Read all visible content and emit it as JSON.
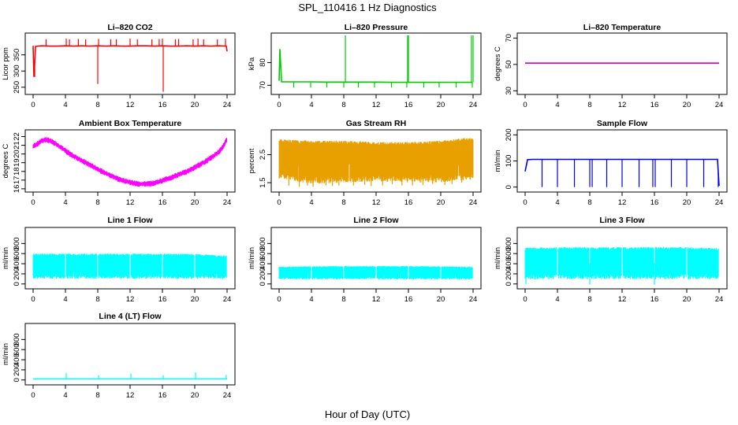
{
  "figure": {
    "title": "SPL_110416  1 Hz Diagnostics",
    "xlabel": "Hour of Day (UTC)"
  },
  "chart_data": [
    {
      "type": "line",
      "title": "Li–820 CO2",
      "ylabel": "Licor ppm",
      "color": "#ff0000",
      "xlim": [
        0,
        24
      ],
      "ylim": [
        235,
        410
      ],
      "xticks": [
        0,
        4,
        8,
        12,
        16,
        20,
        24
      ],
      "yticks": [
        250,
        300,
        350
      ],
      "series": [
        {
          "x": [
            0,
            0.1,
            0.3,
            1,
            2,
            3,
            4,
            5,
            6,
            7,
            8,
            9,
            10,
            11,
            12,
            13,
            14,
            15,
            16,
            17,
            18,
            19,
            20,
            21,
            22,
            23,
            23.9,
            24
          ],
          "y": [
            378,
            282,
            376,
            378,
            377,
            377,
            378,
            377,
            378,
            377,
            378,
            377,
            378,
            377,
            377,
            378,
            378,
            377,
            378,
            377,
            377,
            378,
            377,
            378,
            377,
            378,
            377,
            361
          ]
        }
      ],
      "spikes": [
        {
          "x": [
            0.2,
            8.0,
            16.1
          ],
          "y": [
            282,
            260,
            236
          ]
        },
        {
          "x": [
            1.6,
            4.1,
            4.5,
            5.6,
            6.5,
            8.1,
            9.6,
            10.3,
            12.0,
            12.9,
            14.7,
            15.6,
            16.0,
            17.6,
            18.0,
            19.8,
            20.4,
            21.1,
            22.8,
            23.8
          ],
          "y": [
            398,
            400,
            398,
            399,
            398,
            399,
            398,
            398,
            400,
            398,
            398,
            399,
            400,
            398,
            399,
            398,
            400,
            398,
            398,
            400
          ]
        }
      ]
    },
    {
      "type": "line",
      "title": "Li–820 Pressure",
      "ylabel": "kPa",
      "color": "#00cc00",
      "xlim": [
        0,
        24
      ],
      "ylim": [
        67,
        92
      ],
      "xticks": [
        0,
        4,
        8,
        12,
        16,
        20,
        24
      ],
      "yticks": [
        70,
        80
      ],
      "series": [
        {
          "x": [
            0,
            0.1,
            0.3,
            2,
            4,
            6,
            8,
            10,
            12,
            14,
            16,
            18,
            20,
            22,
            23.9
          ],
          "y": [
            72,
            86,
            71.5,
            71.5,
            71.5,
            71.4,
            71.4,
            71.4,
            71.4,
            71.3,
            71.3,
            71.3,
            71.3,
            71.3,
            71.3
          ]
        }
      ],
      "spikes": [
        {
          "x": [
            8.2,
            15.9,
            16.0,
            23.8,
            24.0
          ],
          "y": [
            92,
            92,
            92,
            92,
            92
          ]
        },
        {
          "x": [
            1.8,
            3.9,
            5.9,
            8.0,
            9.8,
            11.8,
            13.9,
            15.8,
            17.9,
            19.8,
            21.9,
            23.9
          ],
          "y": [
            69,
            69,
            69,
            69,
            69,
            69,
            69,
            69,
            69,
            69,
            69,
            69
          ]
        }
      ]
    },
    {
      "type": "line",
      "title": "Li–820 Temperature",
      "ylabel": "degrees C",
      "color": "#cc00cc",
      "xlim": [
        0,
        24
      ],
      "ylim": [
        29,
        72
      ],
      "xticks": [
        0,
        4,
        8,
        12,
        16,
        20,
        24
      ],
      "yticks": [
        30,
        50,
        70
      ],
      "series": [
        {
          "x": [
            0,
            24
          ],
          "y": [
            51,
            51
          ]
        }
      ]
    },
    {
      "type": "line",
      "title": "Ambient Box Temperature",
      "ylabel": "degrees C",
      "color": "#ff00ff",
      "xlim": [
        0,
        24
      ],
      "ylim": [
        15.9,
        22.5
      ],
      "xticks": [
        0,
        4,
        8,
        12,
        16,
        20,
        24
      ],
      "yticks": [
        16,
        17,
        18,
        19,
        20,
        21,
        22
      ],
      "series": [
        {
          "x": [
            0,
            0.5,
            1,
            1.5,
            2,
            3,
            4,
            5,
            6,
            7,
            8,
            9,
            10,
            11,
            12,
            13,
            14,
            15,
            16,
            17,
            18,
            19,
            20,
            21,
            22,
            23,
            23.5,
            24
          ],
          "y": [
            20.9,
            21.2,
            21.5,
            21.7,
            21.6,
            21.1,
            20.4,
            19.8,
            19.3,
            18.8,
            18.3,
            17.8,
            17.4,
            17.0,
            16.8,
            16.6,
            16.6,
            16.7,
            17.0,
            17.3,
            17.7,
            18.0,
            18.5,
            19.0,
            19.6,
            20.3,
            20.9,
            21.8
          ]
        }
      ],
      "band": 0.35
    },
    {
      "type": "line",
      "title": "Gas Stream RH",
      "ylabel": "percent",
      "color": "#e8a000",
      "xlim": [
        0,
        24
      ],
      "ylim": [
        1.25,
        3.3
      ],
      "xticks": [
        0,
        4,
        8,
        12,
        16,
        20,
        24
      ],
      "yticks": [
        1.5,
        2.5
      ],
      "band_hi": [
        {
          "x": [
            0,
            4,
            8,
            12,
            16,
            20,
            23,
            24
          ],
          "y": [
            3.05,
            3.0,
            3.0,
            2.95,
            2.95,
            3.0,
            3.1,
            3.1
          ]
        }
      ],
      "band_lo": [
        {
          "x": [
            0,
            4,
            8,
            12,
            16,
            20,
            24
          ],
          "y": [
            1.65,
            1.45,
            1.5,
            1.55,
            1.5,
            1.5,
            1.6
          ]
        }
      ],
      "spikes": [
        {
          "x": [
            1.2,
            2.5,
            3.5,
            4.2,
            5.8,
            6.6,
            7.4,
            9.2,
            10.6,
            11.4,
            12.8,
            14.0,
            15.2,
            16.5,
            17.8,
            19.0,
            20.5,
            21.4,
            22.6
          ],
          "y": [
            1.4,
            1.35,
            1.4,
            1.35,
            1.4,
            1.38,
            1.4,
            1.4,
            1.42,
            1.38,
            1.4,
            1.45,
            1.4,
            1.4,
            1.42,
            1.45,
            1.42,
            1.45,
            1.5
          ]
        }
      ]
    },
    {
      "type": "line",
      "title": "Sample Flow",
      "ylabel": "ml/min",
      "color": "#0000ee",
      "xlim": [
        0,
        24
      ],
      "ylim": [
        -10,
        210
      ],
      "xticks": [
        0,
        4,
        8,
        12,
        16,
        20,
        24
      ],
      "yticks": [
        0,
        100,
        200
      ],
      "series": [
        {
          "x": [
            0,
            0.3,
            1,
            4,
            7.8,
            8.5,
            12,
            15.8,
            16.5,
            20,
            23.8,
            24
          ],
          "y": [
            60,
            105,
            106,
            106,
            106,
            106,
            106,
            106,
            106,
            106,
            106,
            5
          ]
        }
      ],
      "spikes": [
        {
          "x": [
            2.1,
            4.0,
            6.1,
            8.0,
            8.3,
            10.1,
            12.0,
            14.1,
            15.8,
            16.1,
            18.1,
            20.0,
            22.1,
            23.9
          ],
          "y": [
            0,
            0,
            0,
            0,
            0,
            0,
            0,
            0,
            0,
            0,
            0,
            0,
            0,
            0
          ]
        }
      ]
    },
    {
      "type": "line",
      "title": "Line 1 Flow",
      "ylabel": "ml/min",
      "color": "#00ffff",
      "xlim": [
        0,
        24
      ],
      "ylim": [
        -50,
        1070
      ],
      "xticks": [
        0,
        4,
        8,
        12,
        16,
        20,
        24
      ],
      "yticks": [
        0,
        200,
        400,
        600,
        800
      ],
      "band_hi": [
        {
          "x": [
            0,
            4,
            8,
            12,
            16,
            20,
            24
          ],
          "y": [
            600,
            600,
            600,
            600,
            600,
            595,
            560
          ]
        }
      ],
      "band_lo": [
        {
          "x": [
            0,
            24
          ],
          "y": [
            100,
            100
          ]
        }
      ],
      "gaps": [
        4,
        8,
        12,
        16,
        20,
        24
      ]
    },
    {
      "type": "line",
      "title": "Line 2 Flow",
      "ylabel": "ml/min",
      "color": "#00ffff",
      "xlim": [
        0,
        24
      ],
      "ylim": [
        -50,
        1070
      ],
      "xticks": [
        0,
        4,
        8,
        12,
        16,
        20,
        24
      ],
      "yticks": [
        0,
        200,
        400,
        600,
        800
      ],
      "band_hi": [
        {
          "x": [
            0,
            4,
            8,
            12,
            16,
            20,
            24
          ],
          "y": [
            340,
            350,
            355,
            355,
            355,
            350,
            340
          ]
        }
      ],
      "band_lo": [
        {
          "x": [
            0,
            24
          ],
          "y": [
            90,
            90
          ]
        }
      ],
      "gaps": [
        4,
        8,
        12,
        16,
        20,
        24
      ]
    },
    {
      "type": "line",
      "title": "Line 3 Flow",
      "ylabel": "ml/min",
      "color": "#00ffff",
      "xlim": [
        0,
        24
      ],
      "ylim": [
        -50,
        1070
      ],
      "xticks": [
        0,
        4,
        8,
        12,
        16,
        20,
        24
      ],
      "yticks": [
        0,
        200,
        400,
        600,
        800
      ],
      "band_hi": [
        {
          "x": [
            0,
            4,
            8,
            12,
            16,
            20,
            24
          ],
          "y": [
            720,
            730,
            730,
            730,
            730,
            730,
            710
          ]
        }
      ],
      "band_lo": [
        {
          "x": [
            0,
            24
          ],
          "y": [
            90,
            90
          ]
        }
      ],
      "gaps": [
        4,
        8,
        12,
        16,
        20,
        24
      ],
      "spikes": [
        {
          "x": [
            0.1,
            8.0,
            16.0
          ],
          "y": [
            0,
            -10,
            -15
          ]
        }
      ]
    },
    {
      "type": "line",
      "title": "Line 4 (LT) Flow",
      "ylabel": "ml/min",
      "color": "#00ffff",
      "xlim": [
        0,
        24
      ],
      "ylim": [
        -50,
        1070
      ],
      "xticks": [
        0,
        4,
        8,
        12,
        16,
        20,
        24
      ],
      "yticks": [
        0,
        200,
        400,
        600,
        800
      ],
      "series": [
        {
          "x": [
            0,
            24
          ],
          "y": [
            20,
            20
          ]
        }
      ],
      "spikes": [
        {
          "x": [
            4.1,
            8.1,
            12.1,
            16.1,
            20.1,
            23.9
          ],
          "y": [
            140,
            90,
            130,
            95,
            150,
            100
          ]
        }
      ]
    }
  ]
}
